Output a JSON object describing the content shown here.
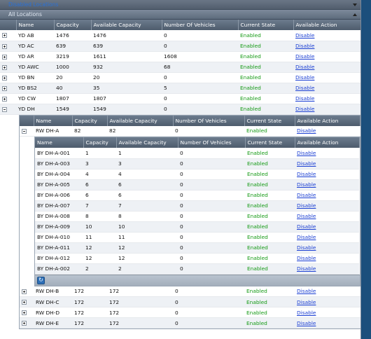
{
  "panels": {
    "disabled_title": "Disabled Locations",
    "all_title": "All Locations"
  },
  "columns": [
    "Name",
    "Capacity",
    "Available Capacity",
    "Number Of Vehicles",
    "Current State",
    "Available Action"
  ],
  "locations": [
    {
      "name": "YD AB",
      "capacity": "1476",
      "available": "1476",
      "vehicles": "0",
      "state": "Enabled",
      "action": "Disable"
    },
    {
      "name": "YD AC",
      "capacity": "639",
      "available": "639",
      "vehicles": "0",
      "state": "Enabled",
      "action": "Disable"
    },
    {
      "name": "YD AR",
      "capacity": "3219",
      "available": "1611",
      "vehicles": "1608",
      "state": "Enabled",
      "action": "Disable"
    },
    {
      "name": "YD AWC",
      "capacity": "1000",
      "available": "932",
      "vehicles": "68",
      "state": "Enabled",
      "action": "Disable"
    },
    {
      "name": "YD BN",
      "capacity": "20",
      "available": "20",
      "vehicles": "0",
      "state": "Enabled",
      "action": "Disable"
    },
    {
      "name": "YD BS2",
      "capacity": "40",
      "available": "35",
      "vehicles": "5",
      "state": "Enabled",
      "action": "Disable"
    },
    {
      "name": "YD CW",
      "capacity": "1807",
      "available": "1807",
      "vehicles": "0",
      "state": "Enabled",
      "action": "Disable"
    },
    {
      "name": "YD DH",
      "capacity": "1549",
      "available": "1549",
      "vehicles": "0",
      "state": "Enabled",
      "action": "Disable"
    }
  ],
  "rows": [
    {
      "name": "RW DH-A",
      "capacity": "82",
      "available": "82",
      "vehicles": "0",
      "state": "Enabled",
      "action": "Disable"
    },
    {
      "name": "RW DH-B",
      "capacity": "172",
      "available": "172",
      "vehicles": "0",
      "state": "Enabled",
      "action": "Disable"
    },
    {
      "name": "RW DH-C",
      "capacity": "172",
      "available": "172",
      "vehicles": "0",
      "state": "Enabled",
      "action": "Disable"
    },
    {
      "name": "RW DH-D",
      "capacity": "172",
      "available": "172",
      "vehicles": "0",
      "state": "Enabled",
      "action": "Disable"
    },
    {
      "name": "RW DH-E",
      "capacity": "172",
      "available": "172",
      "vehicles": "0",
      "state": "Enabled",
      "action": "Disable"
    }
  ],
  "bays": [
    {
      "name": "BY DH-A-001",
      "capacity": "1",
      "available": "1",
      "vehicles": "0",
      "state": "Enabled",
      "action": "Disable"
    },
    {
      "name": "BY DH-A-003",
      "capacity": "3",
      "available": "3",
      "vehicles": "0",
      "state": "Enabled",
      "action": "Disable"
    },
    {
      "name": "BY DH-A-004",
      "capacity": "4",
      "available": "4",
      "vehicles": "0",
      "state": "Enabled",
      "action": "Disable"
    },
    {
      "name": "BY DH-A-005",
      "capacity": "6",
      "available": "6",
      "vehicles": "0",
      "state": "Enabled",
      "action": "Disable"
    },
    {
      "name": "BY DH-A-006",
      "capacity": "6",
      "available": "6",
      "vehicles": "0",
      "state": "Enabled",
      "action": "Disable"
    },
    {
      "name": "BY DH-A-007",
      "capacity": "7",
      "available": "7",
      "vehicles": "0",
      "state": "Enabled",
      "action": "Disable"
    },
    {
      "name": "BY DH-A-008",
      "capacity": "8",
      "available": "8",
      "vehicles": "0",
      "state": "Enabled",
      "action": "Disable"
    },
    {
      "name": "BY DH-A-009",
      "capacity": "10",
      "available": "10",
      "vehicles": "0",
      "state": "Enabled",
      "action": "Disable"
    },
    {
      "name": "BY DH-A-010",
      "capacity": "11",
      "available": "11",
      "vehicles": "0",
      "state": "Enabled",
      "action": "Disable"
    },
    {
      "name": "BY DH-A-011",
      "capacity": "12",
      "available": "12",
      "vehicles": "0",
      "state": "Enabled",
      "action": "Disable"
    },
    {
      "name": "BY DH-A-012",
      "capacity": "12",
      "available": "12",
      "vehicles": "0",
      "state": "Enabled",
      "action": "Disable"
    },
    {
      "name": "BY DH-A-002",
      "capacity": "2",
      "available": "2",
      "vehicles": "0",
      "state": "Enabled",
      "action": "Disable"
    }
  ],
  "icons": {
    "refresh": "refresh-icon",
    "expand": "plus-box-icon",
    "collapse": "minus-box-icon"
  },
  "colors": {
    "enabled": "#159a15",
    "link": "#1b3fd3",
    "header": "#5d6b7c"
  }
}
